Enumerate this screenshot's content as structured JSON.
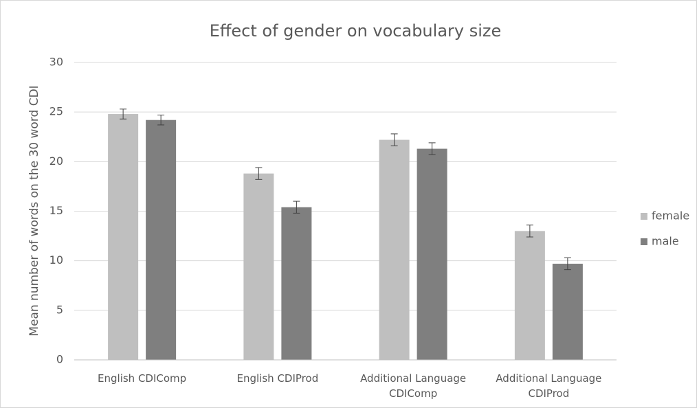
{
  "chart_data": {
    "type": "bar",
    "title": "Effect of gender on vocabulary size",
    "y_label": "Mean number of words on the 30 word CDI",
    "categories": [
      "English CDIComp",
      "English CDIProd",
      "Additional Language CDIComp",
      "Additional Language CDIProd"
    ],
    "series": [
      {
        "name": "female",
        "color": "#bfbfbf",
        "values": [
          24.8,
          18.8,
          22.2,
          13.0
        ],
        "errors": [
          0.5,
          0.6,
          0.6,
          0.6
        ]
      },
      {
        "name": "male",
        "color": "#7f7f7f",
        "values": [
          24.2,
          15.4,
          21.3,
          9.7
        ],
        "errors": [
          0.5,
          0.6,
          0.6,
          0.6
        ]
      }
    ],
    "ylim": [
      0,
      30
    ],
    "yticks": [
      0,
      5,
      10,
      15,
      20,
      25,
      30
    ],
    "grid": true,
    "legend": "right"
  }
}
